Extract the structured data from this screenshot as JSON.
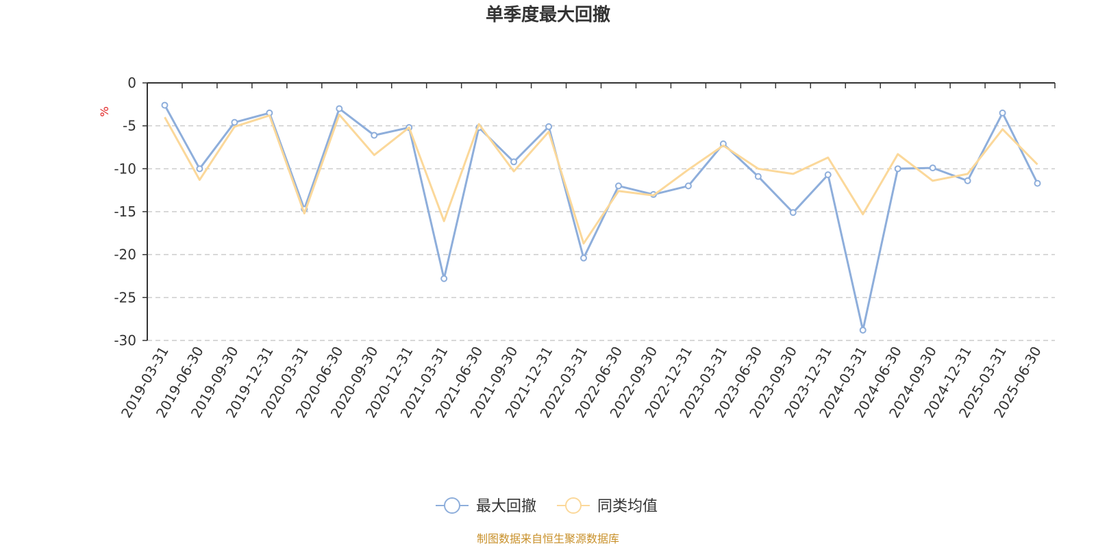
{
  "chart_data": {
    "type": "line",
    "title": "单季度最大回撤",
    "ylabel": "%",
    "ylim": [
      -30,
      0
    ],
    "yticks": [
      0,
      -5,
      -10,
      -15,
      -20,
      -25,
      -30
    ],
    "grid": true,
    "legend_position": "bottom",
    "source": "制图数据来自恒生聚源数据库",
    "categories": [
      "2019-03-31",
      "2019-06-30",
      "2019-09-30",
      "2019-12-31",
      "2020-03-31",
      "2020-06-30",
      "2020-09-30",
      "2020-12-31",
      "2021-03-31",
      "2021-06-30",
      "2021-09-30",
      "2021-12-31",
      "2022-03-31",
      "2022-06-30",
      "2022-09-30",
      "2022-12-31",
      "2023-03-31",
      "2023-06-30",
      "2023-09-30",
      "2023-12-31",
      "2024-03-31",
      "2024-06-30",
      "2024-09-30",
      "2024-12-31",
      "2025-03-31",
      "2025-06-30"
    ],
    "series": [
      {
        "name": "最大回撤",
        "color": "#8eaedb",
        "values": [
          -2.6,
          -10.0,
          -4.6,
          -3.5,
          -14.7,
          -3.0,
          -6.1,
          -5.2,
          -22.8,
          -5.2,
          -9.2,
          -5.1,
          -20.4,
          -12.0,
          -13.0,
          -12.0,
          -7.1,
          -10.9,
          -15.1,
          -10.7,
          -28.8,
          -10.0,
          -9.9,
          -11.4,
          -3.5,
          -11.7
        ]
      },
      {
        "name": "同类均值",
        "color": "#fbd89a",
        "values": [
          -4.0,
          -11.3,
          -5.1,
          -3.8,
          -15.2,
          -3.7,
          -8.4,
          -5.2,
          -16.1,
          -4.8,
          -10.3,
          -5.7,
          -18.7,
          -12.6,
          -13.1,
          -10.1,
          -7.3,
          -10.0,
          -10.6,
          -8.7,
          -15.3,
          -8.3,
          -11.4,
          -10.6,
          -5.4,
          -9.5
        ]
      }
    ]
  }
}
